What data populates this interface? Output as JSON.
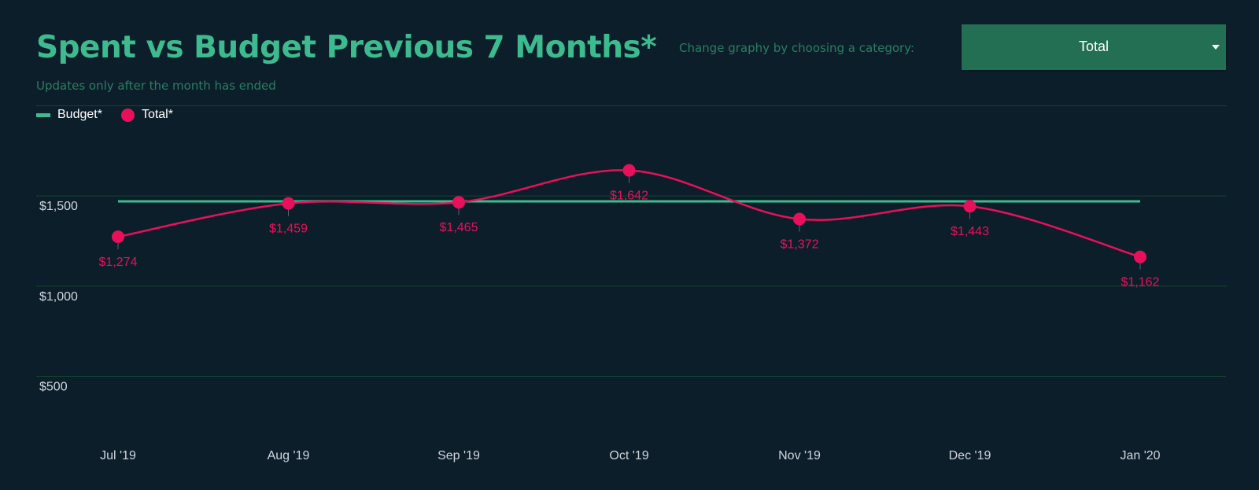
{
  "header": {
    "title": "Spent vs Budget Previous 7 Months*",
    "subtitle": "Updates only after the month has ended",
    "category_label": "Change graphy by choosing a category:"
  },
  "category_select": {
    "value": "Total"
  },
  "legend": [
    {
      "label": "Budget*",
      "icon": "line-swatch-icon"
    },
    {
      "label": "Total*",
      "icon": "dot-swatch-icon"
    }
  ],
  "colors": {
    "background": "#0d1e2b",
    "accent": "#3dbb8e",
    "total": "#e8105a",
    "grid": "#13442f",
    "select": "#236f53"
  },
  "chart_data": {
    "type": "line",
    "title": "Spent vs Budget Previous 7 Months*",
    "categories": [
      "Jul '19",
      "Aug '19",
      "Sep '19",
      "Oct '19",
      "Nov '19",
      "Dec '19",
      "Jan '20"
    ],
    "series": [
      {
        "name": "Budget*",
        "values": [
          1470,
          1470,
          1470,
          1470,
          1470,
          1470,
          1470
        ],
        "style": "line"
      },
      {
        "name": "Total*",
        "values": [
          1274,
          1459,
          1465,
          1642,
          1372,
          1443,
          1162
        ],
        "labels": [
          "$1,274",
          "$1,459",
          "$1,465",
          "$1,642",
          "$1,372",
          "$1,443",
          "$1,162"
        ],
        "style": "smooth-line-with-markers"
      }
    ],
    "y_ticks": [
      {
        "value": 500,
        "label": "$500"
      },
      {
        "value": 1000,
        "label": "$1,000"
      },
      {
        "value": 1500,
        "label": "$1,500"
      },
      {
        "value": 2000,
        "label": ""
      }
    ],
    "ylim": [
      200,
      2000
    ],
    "grid": true,
    "legend_position": "top-left"
  }
}
